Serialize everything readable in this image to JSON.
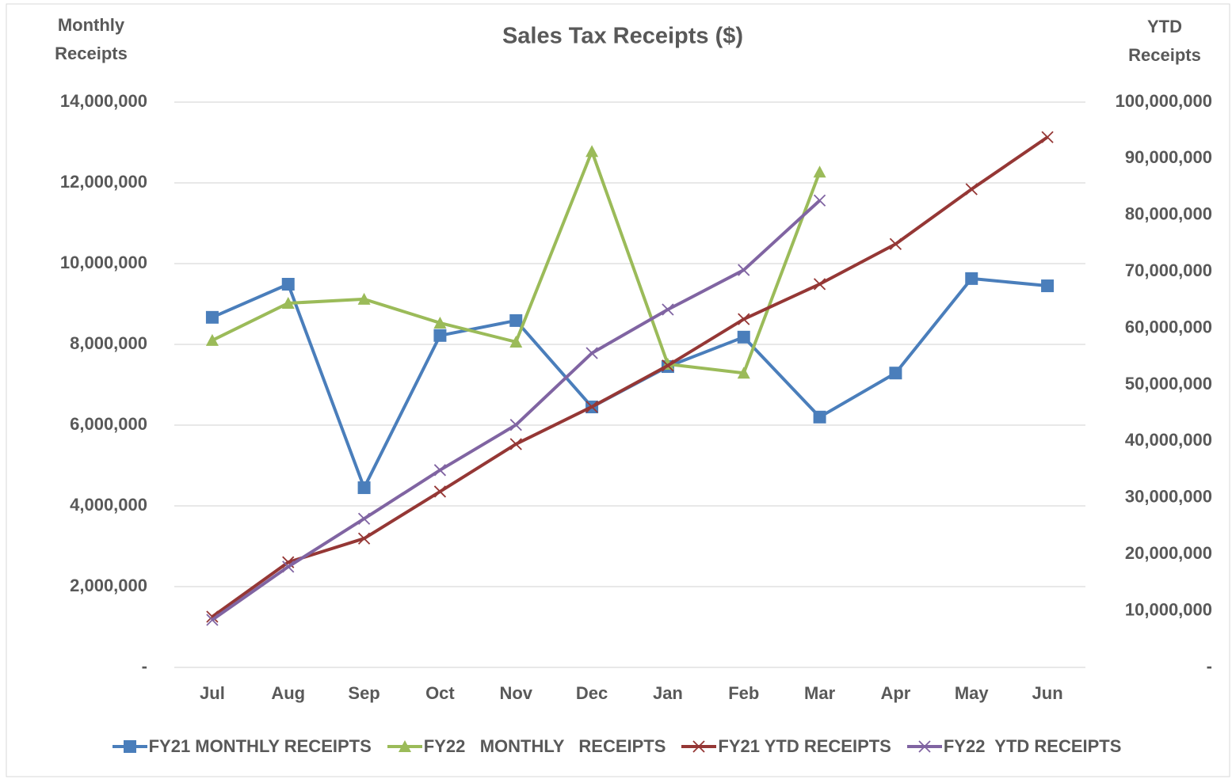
{
  "chart_data": {
    "type": "line",
    "title": "Sales Tax Receipts ($)",
    "y_label": "Monthly Receipts",
    "y2_label": "YTD Receipts",
    "categories": [
      "Jul",
      "Aug",
      "Sep",
      "Oct",
      "Nov",
      "Dec",
      "Jan",
      "Feb",
      "Mar",
      "Apr",
      "May",
      "Jun"
    ],
    "ylim": [
      0,
      14000000
    ],
    "yticks": [
      {
        "value": 0,
        "label": "-"
      },
      {
        "value": 2000000,
        "label": "2,000,000"
      },
      {
        "value": 4000000,
        "label": "4,000,000"
      },
      {
        "value": 6000000,
        "label": "6,000,000"
      },
      {
        "value": 8000000,
        "label": "8,000,000"
      },
      {
        "value": 10000000,
        "label": "10,000,000"
      },
      {
        "value": 12000000,
        "label": "12,000,000"
      },
      {
        "value": 14000000,
        "label": "14,000,000"
      }
    ],
    "y2lim": [
      0,
      100000000
    ],
    "y2ticks": [
      {
        "value": 0,
        "label": "-"
      },
      {
        "value": 10000000,
        "label": "10,000,000"
      },
      {
        "value": 20000000,
        "label": "20,000,000"
      },
      {
        "value": 30000000,
        "label": "30,000,000"
      },
      {
        "value": 40000000,
        "label": "40,000,000"
      },
      {
        "value": 50000000,
        "label": "50,000,000"
      },
      {
        "value": 60000000,
        "label": "60,000,000"
      },
      {
        "value": 70000000,
        "label": "70,000,000"
      },
      {
        "value": 80000000,
        "label": "80,000,000"
      },
      {
        "value": 90000000,
        "label": "90,000,000"
      },
      {
        "value": 100000000,
        "label": "100,000,000"
      }
    ],
    "grid": true,
    "legend": "bottom",
    "series": [
      {
        "name": "FY21 MONTHLY RECEIPTS",
        "color": "#4a7ebb",
        "marker": "square",
        "axis": "y",
        "values": [
          8670000,
          9490000,
          4450000,
          8220000,
          8590000,
          6450000,
          7450000,
          8180000,
          6200000,
          7290000,
          9630000,
          9450000
        ]
      },
      {
        "name": "FY22   MONTHLY   RECEIPTS",
        "color": "#9bbb59",
        "marker": "triangle",
        "axis": "y",
        "values": [
          8100000,
          9020000,
          9120000,
          8530000,
          8060000,
          12780000,
          7510000,
          7290000,
          12270000,
          null,
          null,
          null
        ]
      },
      {
        "name": "FY21 YTD RECEIPTS",
        "color": "#953735",
        "marker": "x",
        "axis": "y2",
        "values": [
          8960000,
          18600000,
          22800000,
          31100000,
          39500000,
          46100000,
          53400000,
          61600000,
          67800000,
          74900000,
          84600000,
          93800000
        ]
      },
      {
        "name": "FY22  YTD RECEIPTS",
        "color": "#8064a2",
        "marker": "x",
        "axis": "y2",
        "values": [
          8400000,
          17800000,
          26300000,
          34900000,
          42900000,
          55600000,
          63300000,
          70300000,
          82600000,
          null,
          null,
          null
        ]
      }
    ]
  }
}
